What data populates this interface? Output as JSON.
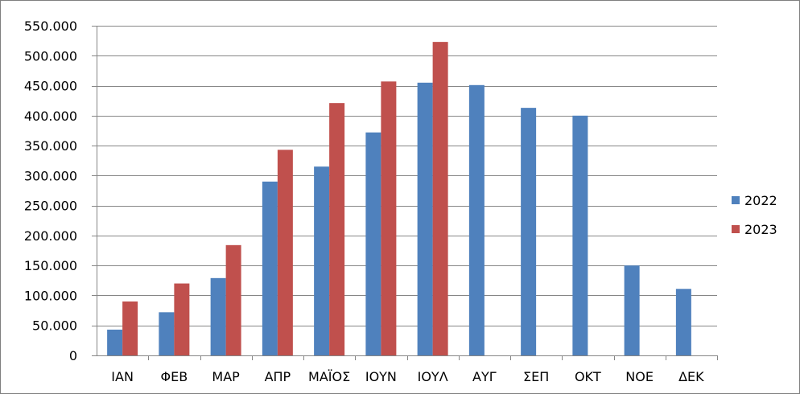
{
  "chart_data": {
    "type": "bar",
    "categories": [
      "ΙΑΝ",
      "ΦΕΒ",
      "ΜΑΡ",
      "ΑΠΡ",
      "ΜΑΪΟΣ",
      "ΙΟΥΝ",
      "ΙΟΥΛ",
      "ΑΥΓ",
      "ΣΕΠ",
      "ΟΚΤ",
      "ΝΟΕ",
      "ΔΕΚ"
    ],
    "series": [
      {
        "name": "2022",
        "color": "#4f81bd",
        "values": [
          43000,
          72000,
          129000,
          290000,
          315000,
          372000,
          455000,
          451000,
          413000,
          400000,
          150000,
          111000
        ]
      },
      {
        "name": "2023",
        "color": "#c0504d",
        "values": [
          90000,
          120000,
          184000,
          343000,
          421000,
          457000,
          523000,
          null,
          null,
          null,
          null,
          null
        ]
      }
    ],
    "ylim": [
      0,
      550000
    ],
    "ytick_values": [
      0,
      50000,
      100000,
      150000,
      200000,
      250000,
      300000,
      350000,
      400000,
      450000,
      500000,
      550000
    ],
    "ytick_labels": [
      "0",
      "50.000",
      "100.000",
      "150.000",
      "200.000",
      "250.000",
      "300.000",
      "350.000",
      "400.000",
      "450.000",
      "500.000",
      "550.000"
    ],
    "grid": true,
    "legend_position": "right",
    "title": "",
    "xlabel": "",
    "ylabel": ""
  }
}
